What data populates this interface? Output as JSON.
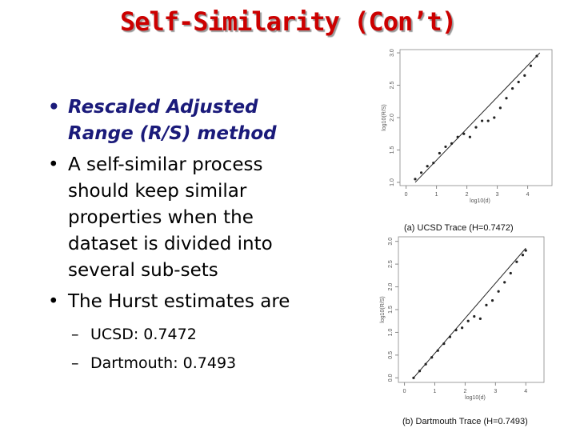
{
  "title": "Self-Similarity (Con’t)",
  "bullets": [
    {
      "text": "Rescaled Adjusted Range (R/S) method",
      "emphasis": true
    },
    {
      "text": "A self-similar process should keep similar properties when the dataset is divided into several sub-sets"
    },
    {
      "text": "The Hurst estimates are",
      "sub": [
        "UCSD: 0.7472",
        "Dartmouth: 0.7493"
      ]
    }
  ],
  "figures": [
    {
      "type": "scatter",
      "caption": "(a) UCSD Trace (H=0.7472)",
      "x_label": "log10(d)",
      "y_label": "log10(R/S)",
      "xlim": [
        -0.2,
        4.8
      ],
      "ylim": [
        0.95,
        3.05
      ],
      "xticks": [
        0,
        1,
        2,
        3,
        4
      ],
      "yticks": [
        {
          "value": 1,
          "label": "1.0"
        },
        {
          "value": 1.5,
          "label": "1.5"
        },
        {
          "value": 2,
          "label": "2.0"
        },
        {
          "value": 2.5,
          "label": "2.5"
        },
        {
          "value": 3,
          "label": "3.0"
        }
      ],
      "x": [
        0.3,
        0.5,
        0.7,
        0.9,
        1.1,
        1.3,
        1.5,
        1.7,
        1.9,
        2.1,
        2.3,
        2.5,
        2.7,
        2.9,
        3.1,
        3.3,
        3.5,
        3.7,
        3.9,
        4.1,
        4.3
      ],
      "y": [
        1.05,
        1.15,
        1.25,
        1.3,
        1.45,
        1.55,
        1.6,
        1.7,
        1.75,
        1.7,
        1.85,
        1.95,
        1.95,
        2.0,
        2.15,
        2.3,
        2.45,
        2.55,
        2.65,
        2.8,
        2.95
      ],
      "fit_x": [
        0.3,
        4.4
      ],
      "fit_y": [
        1.0,
        3.0
      ]
    },
    {
      "type": "scatter",
      "caption": "(b) Dartmouth Trace (H=0.7493)",
      "x_label": "log10(d)",
      "y_label": "log10(R/S)",
      "xlim": [
        -0.2,
        4.6
      ],
      "ylim": [
        -0.1,
        3.1
      ],
      "xticks": [
        0,
        1,
        2,
        3,
        4
      ],
      "yticks": [
        {
          "value": 0,
          "label": "0.0"
        },
        {
          "value": 0.5,
          "label": "0.5"
        },
        {
          "value": 1,
          "label": "1.0"
        },
        {
          "value": 1.5,
          "label": "1.5"
        },
        {
          "value": 2,
          "label": "2.0"
        },
        {
          "value": 2.5,
          "label": "2.5"
        },
        {
          "value": 3,
          "label": "3.0"
        }
      ],
      "x": [
        0.3,
        0.5,
        0.7,
        0.9,
        1.1,
        1.3,
        1.5,
        1.7,
        1.9,
        2.1,
        2.3,
        2.5,
        2.7,
        2.9,
        3.1,
        3.3,
        3.5,
        3.7,
        3.9,
        4.0
      ],
      "y": [
        0.0,
        0.15,
        0.3,
        0.45,
        0.6,
        0.75,
        0.9,
        1.05,
        1.1,
        1.25,
        1.35,
        1.3,
        1.6,
        1.7,
        1.9,
        2.1,
        2.3,
        2.55,
        2.7,
        2.8
      ],
      "fit_x": [
        0.3,
        4.0
      ],
      "fit_y": [
        0.0,
        2.85
      ]
    }
  ]
}
